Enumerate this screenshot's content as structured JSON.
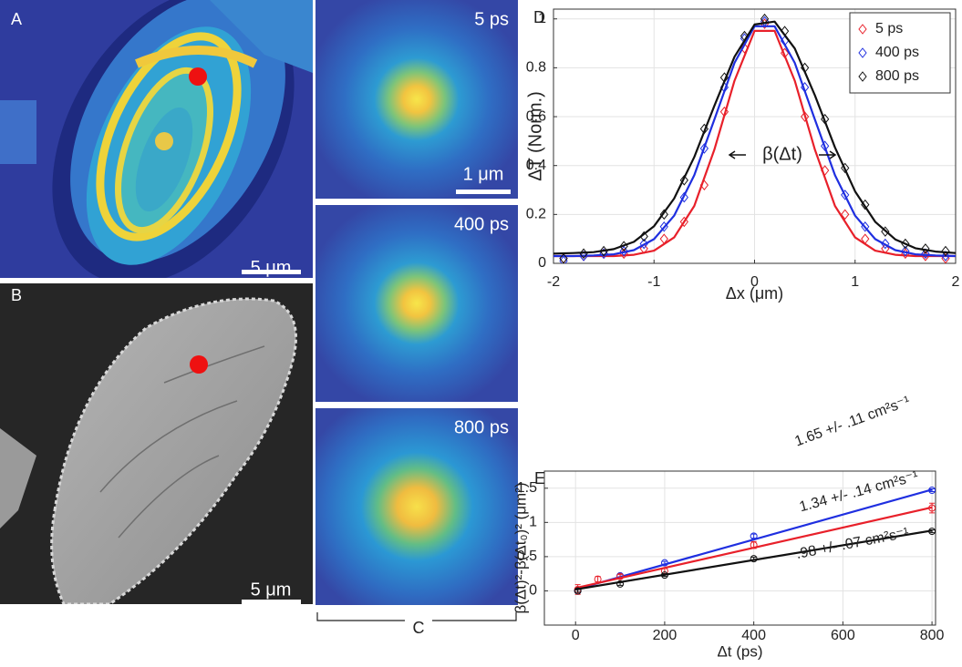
{
  "panels": {
    "A": {
      "label": "A",
      "scale_bar": "5 μm"
    },
    "B": {
      "label": "B",
      "scale_bar": "5 μm"
    },
    "C": {
      "label": "C",
      "images": [
        "5 ps",
        "400 ps",
        "800 ps"
      ],
      "scale_bar": "1 μm"
    }
  },
  "chart_data": [
    {
      "type": "line",
      "panel_label": "D",
      "xlabel": "Δx (μm)",
      "ylabel": "ΔT (Norm.)",
      "xlim": [
        -2,
        2
      ],
      "ylim": [
        0,
        1.04
      ],
      "xticks": [
        -2,
        -1,
        0,
        1,
        2
      ],
      "yticks": [
        0,
        0.2,
        0.4,
        0.6,
        0.8,
        1
      ],
      "grid": true,
      "legend": "upper right",
      "marker": "diamond",
      "annotations": [
        "β(Δt)"
      ],
      "fit_x": [
        -2,
        -1.8,
        -1.6,
        -1.4,
        -1.2,
        -1,
        -0.8,
        -0.6,
        -0.4,
        -0.2,
        0,
        0.2,
        0.4,
        0.6,
        0.8,
        1,
        1.2,
        1.4,
        1.6,
        1.8,
        2
      ],
      "series": [
        {
          "name": "5 ps",
          "color": "#e8202a",
          "x": [
            -1.9,
            -1.7,
            -1.5,
            -1.3,
            -1.1,
            -0.9,
            -0.7,
            -0.5,
            -0.3,
            -0.1,
            0.1,
            0.3,
            0.5,
            0.7,
            0.9,
            1.1,
            1.3,
            1.5,
            1.7,
            1.9
          ],
          "values": [
            0.02,
            0.03,
            0.04,
            0.04,
            0.06,
            0.1,
            0.17,
            0.32,
            0.62,
            0.88,
            0.98,
            0.86,
            0.6,
            0.38,
            0.2,
            0.1,
            0.06,
            0.04,
            0.03,
            0.02
          ],
          "fit_values": [
            0.03,
            0.03,
            0.03,
            0.03,
            0.035,
            0.052,
            0.106,
            0.235,
            0.465,
            0.747,
            0.951,
            0.951,
            0.747,
            0.465,
            0.235,
            0.106,
            0.052,
            0.035,
            0.03,
            0.03,
            0.03
          ]
        },
        {
          "name": "400 ps",
          "color": "#1f2fe0",
          "x": [
            -1.9,
            -1.7,
            -1.5,
            -1.3,
            -1.1,
            -0.9,
            -0.7,
            -0.5,
            -0.3,
            -0.1,
            0.1,
            0.3,
            0.5,
            0.7,
            0.9,
            1.1,
            1.3,
            1.5,
            1.7,
            1.9
          ],
          "values": [
            0.01,
            0.03,
            0.04,
            0.05,
            0.08,
            0.15,
            0.27,
            0.47,
            0.72,
            0.92,
            0.99,
            0.91,
            0.72,
            0.48,
            0.28,
            0.15,
            0.08,
            0.05,
            0.04,
            0.03
          ],
          "fit_values": [
            0.03,
            0.03,
            0.032,
            0.037,
            0.054,
            0.099,
            0.195,
            0.361,
            0.588,
            0.82,
            0.97,
            0.97,
            0.82,
            0.588,
            0.361,
            0.195,
            0.099,
            0.054,
            0.037,
            0.032,
            0.03
          ]
        },
        {
          "name": "800 ps",
          "color": "#111111",
          "x": [
            -1.9,
            -1.7,
            -1.5,
            -1.3,
            -1.1,
            -0.9,
            -0.7,
            -0.5,
            -0.3,
            -0.1,
            0.1,
            0.3,
            0.5,
            0.7,
            0.9,
            1.1,
            1.3,
            1.5,
            1.7,
            1.9
          ],
          "values": [
            0.02,
            0.04,
            0.05,
            0.07,
            0.11,
            0.2,
            0.34,
            0.55,
            0.76,
            0.93,
            1.0,
            0.95,
            0.8,
            0.59,
            0.39,
            0.24,
            0.13,
            0.08,
            0.06,
            0.05
          ],
          "fit_values": [
            0.04,
            0.042,
            0.046,
            0.058,
            0.088,
            0.152,
            0.265,
            0.435,
            0.644,
            0.845,
            0.977,
            0.989,
            0.879,
            0.687,
            0.474,
            0.294,
            0.17,
            0.098,
            0.062,
            0.048,
            0.042
          ]
        }
      ]
    },
    {
      "type": "scatter",
      "panel_label": "E",
      "xlabel": "Δt (ps)",
      "ylabel": "β(Δt)²-β(Δt₀)² (μm²)",
      "xlim": [
        -70,
        808
      ],
      "ylim": [
        -0.5,
        1.75
      ],
      "xticks": [
        0,
        200,
        400,
        600,
        800
      ],
      "yticks": [
        0,
        0.5,
        1,
        1.5
      ],
      "grid": true,
      "marker": "circle",
      "annotations": [
        "1.65 +/- .11 cm²s⁻¹",
        "1.34 +/- .14 cm²s⁻¹",
        ".98 +/- .07 cm²s⁻¹"
      ],
      "fit_x": [
        0,
        800
      ],
      "series": [
        {
          "color": "#1f2fe0",
          "x": [
            5,
            100,
            200,
            400,
            800
          ],
          "values": [
            0,
            0.22,
            0.41,
            0.8,
            1.47
          ],
          "errors": [
            0.02,
            0.03,
            0.02,
            0.03,
            0.02
          ],
          "fit_values": [
            0.02,
            1.48
          ]
        },
        {
          "color": "#e8202a",
          "x": [
            5,
            50,
            100,
            200,
            400,
            800
          ],
          "values": [
            0.02,
            0.17,
            0.21,
            0.29,
            0.67,
            1.21
          ],
          "errors": [
            0.07,
            0.04,
            0.03,
            0.04,
            0.05,
            0.07
          ],
          "fit_values": [
            0.04,
            1.22
          ]
        },
        {
          "color": "#111111",
          "x": [
            5,
            100,
            200,
            400,
            800
          ],
          "values": [
            0,
            0.1,
            0.23,
            0.47,
            0.87
          ],
          "errors": [
            0.02,
            0.02,
            0.02,
            0.02,
            0.02
          ],
          "fit_values": [
            0.02,
            0.88
          ]
        }
      ]
    }
  ]
}
